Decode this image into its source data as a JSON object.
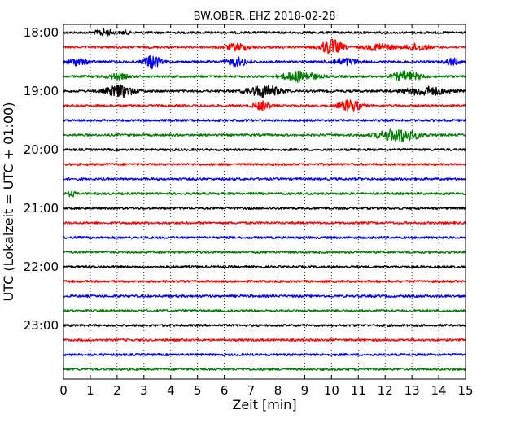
{
  "chart_data": {
    "type": "line",
    "title": "BW.OBER..EHZ 2018-02-28",
    "xlabel": "Zeit  [min]",
    "ylabel": "UTC (Lokalzeit = UTC + 01:00)",
    "xlim": [
      0,
      15
    ],
    "x_ticks": [
      "0",
      "1",
      "2",
      "3",
      "4",
      "5",
      "6",
      "7",
      "8",
      "9",
      "10",
      "11",
      "12",
      "13",
      "14",
      "15"
    ],
    "y_tick_labels": [
      "18:00",
      "19:00",
      "20:00",
      "21:00",
      "22:00",
      "23:00"
    ],
    "grid": "vertical dotted at each minute",
    "colors": {
      "black": "#000000",
      "red": "#ff0000",
      "blue": "#0000ff",
      "green": "#008000"
    },
    "traces": [
      {
        "start": "18:00",
        "color": "black",
        "bursts": [
          [
            1.5,
            0.6,
            4
          ],
          [
            2.3,
            0.3,
            2
          ]
        ]
      },
      {
        "start": "18:15",
        "color": "red",
        "bursts": [
          [
            6.5,
            0.9,
            4
          ],
          [
            10.0,
            0.8,
            9
          ],
          [
            11.8,
            1.0,
            4
          ],
          [
            13.2,
            0.8,
            4
          ]
        ]
      },
      {
        "start": "18:30",
        "color": "blue",
        "bursts": [
          [
            0.5,
            0.8,
            4
          ],
          [
            3.3,
            0.6,
            8
          ],
          [
            6.5,
            0.8,
            5
          ],
          [
            10.5,
            1.0,
            4
          ],
          [
            14.5,
            0.5,
            4
          ]
        ]
      },
      {
        "start": "18:45",
        "color": "green",
        "bursts": [
          [
            2.0,
            0.8,
            3
          ],
          [
            8.8,
            1.2,
            6
          ],
          [
            12.8,
            1.0,
            6
          ]
        ]
      },
      {
        "start": "19:00",
        "color": "black",
        "bursts": [
          [
            2.1,
            1.0,
            7
          ],
          [
            7.5,
            1.2,
            7
          ],
          [
            13.5,
            1.5,
            5
          ]
        ]
      },
      {
        "start": "19:15",
        "color": "red",
        "bursts": [
          [
            7.4,
            0.6,
            5
          ],
          [
            10.7,
            0.8,
            7
          ]
        ]
      },
      {
        "start": "19:30",
        "color": "blue",
        "bursts": []
      },
      {
        "start": "19:45",
        "color": "green",
        "bursts": [
          [
            12.5,
            1.5,
            8
          ]
        ]
      },
      {
        "start": "20:00",
        "color": "black",
        "bursts": []
      },
      {
        "start": "20:15",
        "color": "red",
        "bursts": []
      },
      {
        "start": "20:30",
        "color": "blue",
        "bursts": []
      },
      {
        "start": "20:45",
        "color": "green",
        "bursts": [
          [
            0.3,
            0.3,
            3
          ]
        ]
      },
      {
        "start": "21:00",
        "color": "black",
        "bursts": []
      },
      {
        "start": "21:15",
        "color": "red",
        "bursts": []
      },
      {
        "start": "21:30",
        "color": "blue",
        "bursts": []
      },
      {
        "start": "21:45",
        "color": "green",
        "bursts": []
      },
      {
        "start": "22:00",
        "color": "black",
        "bursts": []
      },
      {
        "start": "22:15",
        "color": "red",
        "bursts": []
      },
      {
        "start": "22:30",
        "color": "blue",
        "bursts": []
      },
      {
        "start": "22:45",
        "color": "green",
        "bursts": []
      },
      {
        "start": "23:00",
        "color": "black",
        "bursts": []
      },
      {
        "start": "23:15",
        "color": "red",
        "bursts": []
      },
      {
        "start": "23:30",
        "color": "blue",
        "bursts": []
      },
      {
        "start": "23:45",
        "color": "green",
        "bursts": []
      }
    ]
  }
}
